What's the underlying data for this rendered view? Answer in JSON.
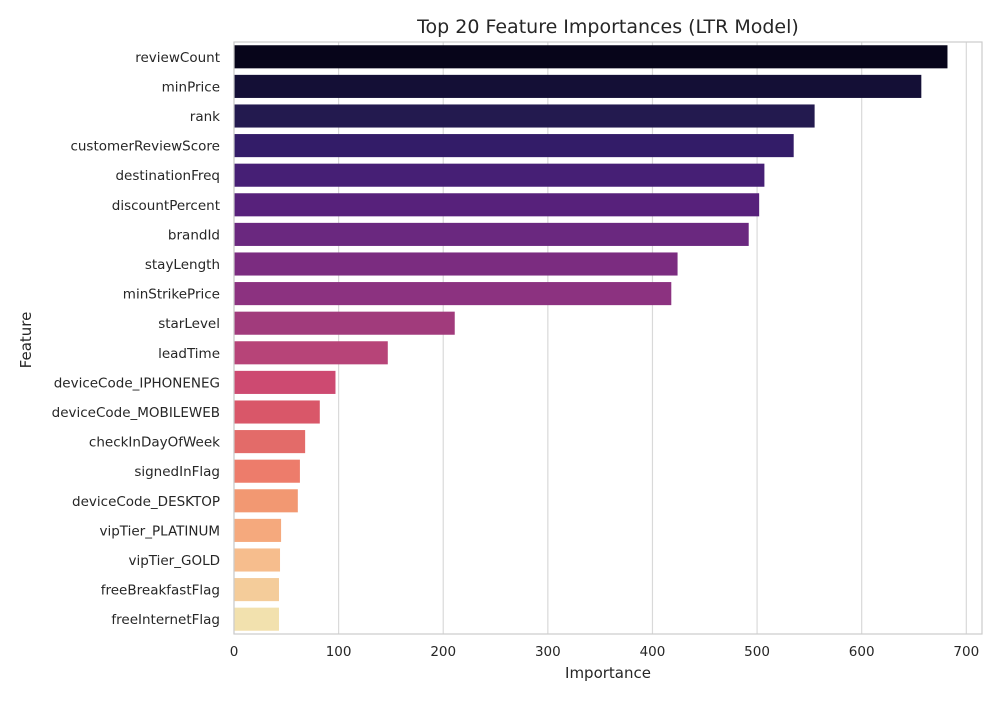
{
  "chart_data": {
    "type": "bar",
    "orientation": "horizontal",
    "title": "Top 20 Feature Importances (LTR Model)",
    "xlabel": "Importance",
    "ylabel": "Feature",
    "xlim": [
      0,
      715
    ],
    "xticks": [
      0,
      100,
      200,
      300,
      400,
      500,
      600,
      700
    ],
    "grid": "vertical",
    "palette": "magma",
    "categories": [
      "reviewCount",
      "minPrice",
      "rank",
      "customerReviewScore",
      "destinationFreq",
      "discountPercent",
      "brandId",
      "stayLength",
      "minStrikePrice",
      "starLevel",
      "leadTime",
      "deviceCode_IPHONENEG",
      "deviceCode_MOBILEWEB",
      "checkInDayOfWeek",
      "signedInFlag",
      "deviceCode_DESKTOP",
      "vipTier_PLATINUM",
      "vipTier_GOLD",
      "freeBreakfastFlag",
      "freeInternetFlag"
    ],
    "values": [
      682,
      657,
      555,
      535,
      507,
      502,
      492,
      424,
      418,
      211,
      147,
      97,
      82,
      68,
      63,
      61,
      45,
      44,
      43,
      43
    ],
    "colors": [
      "#07051a",
      "#140f36",
      "#231a4f",
      "#331c68",
      "#461f75",
      "#57217b",
      "#6a287f",
      "#7b2c80",
      "#8c3280",
      "#a13b7c",
      "#b74478",
      "#cd4a71",
      "#d95769",
      "#e36b69",
      "#ed7c6b",
      "#f29872",
      "#f5a97d",
      "#f6bd8d",
      "#f4cc9a",
      "#f2e1ae"
    ]
  }
}
